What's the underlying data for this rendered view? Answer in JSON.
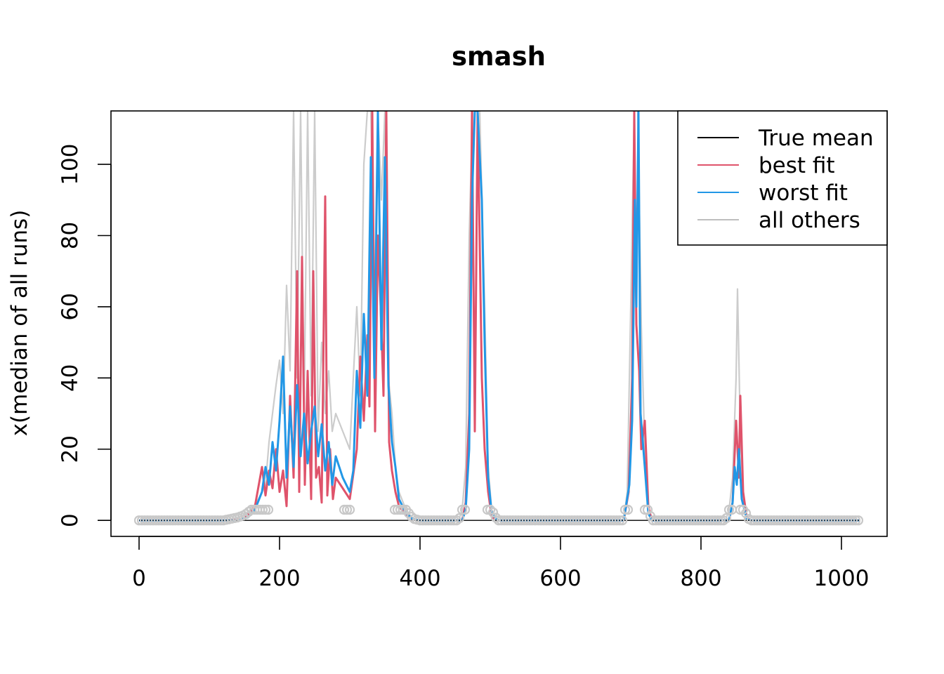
{
  "chart_data": {
    "type": "line",
    "title": "smash",
    "xlabel": "",
    "ylabel": "x(median of all runs)",
    "xlim": [
      -40,
      1065
    ],
    "ylim": [
      -4.5,
      115
    ],
    "x_ticks": [
      0,
      200,
      400,
      600,
      800,
      1000
    ],
    "x_tick_labels": [
      "0",
      "200",
      "400",
      "600",
      "800",
      "1000"
    ],
    "y_ticks": [
      0,
      20,
      40,
      60,
      80,
      100
    ],
    "y_tick_labels": [
      "0",
      "20",
      "40",
      "60",
      "80",
      "100"
    ],
    "legend": {
      "position": "top-right",
      "entries": [
        {
          "label": "True mean",
          "color": "#000000"
        },
        {
          "label": "best fit",
          "color": "#DF536B"
        },
        {
          "label": "worst fit",
          "color": "#2297E6"
        },
        {
          "label": "all others",
          "color": "#BEBEBE"
        }
      ]
    },
    "series": [
      {
        "name": "all others",
        "color": "#CCCCCC",
        "points": [
          [
            0,
            0
          ],
          [
            120,
            0
          ],
          [
            140,
            0.8
          ],
          [
            150,
            1.5
          ],
          [
            160,
            3
          ],
          [
            170,
            6
          ],
          [
            180,
            10
          ],
          [
            185,
            22
          ],
          [
            190,
            30
          ],
          [
            195,
            38
          ],
          [
            200,
            45
          ],
          [
            205,
            30
          ],
          [
            210,
            66
          ],
          [
            215,
            42
          ],
          [
            220,
            115
          ],
          [
            225,
            40
          ],
          [
            230,
            115
          ],
          [
            235,
            30
          ],
          [
            240,
            115
          ],
          [
            245,
            35
          ],
          [
            250,
            115
          ],
          [
            255,
            25
          ],
          [
            260,
            50
          ],
          [
            265,
            30
          ],
          [
            270,
            42
          ],
          [
            275,
            25
          ],
          [
            280,
            30
          ],
          [
            290,
            25
          ],
          [
            300,
            20
          ],
          [
            305,
            40
          ],
          [
            310,
            60
          ],
          [
            315,
            35
          ],
          [
            320,
            100
          ],
          [
            325,
            115
          ],
          [
            330,
            115
          ],
          [
            335,
            60
          ],
          [
            340,
            115
          ],
          [
            345,
            90
          ],
          [
            350,
            115
          ],
          [
            355,
            40
          ],
          [
            360,
            30
          ],
          [
            365,
            15
          ],
          [
            370,
            8
          ],
          [
            380,
            3
          ],
          [
            390,
            0.5
          ],
          [
            400,
            0
          ],
          [
            455,
            0
          ],
          [
            460,
            3
          ],
          [
            465,
            15
          ],
          [
            470,
            80
          ],
          [
            475,
            115
          ],
          [
            485,
            115
          ],
          [
            492,
            60
          ],
          [
            497,
            15
          ],
          [
            502,
            3
          ],
          [
            510,
            0
          ],
          [
            690,
            0
          ],
          [
            695,
            8
          ],
          [
            700,
            60
          ],
          [
            705,
            115
          ],
          [
            710,
            115
          ],
          [
            715,
            55
          ],
          [
            720,
            20
          ],
          [
            725,
            3
          ],
          [
            730,
            0
          ],
          [
            835,
            0
          ],
          [
            840,
            3
          ],
          [
            845,
            12
          ],
          [
            850,
            40
          ],
          [
            852,
            65
          ],
          [
            856,
            25
          ],
          [
            860,
            6
          ],
          [
            865,
            1
          ],
          [
            870,
            0
          ],
          [
            1025,
            0
          ]
        ]
      },
      {
        "name": "best fit",
        "color": "#DF536B",
        "points": [
          [
            0,
            0
          ],
          [
            130,
            0
          ],
          [
            150,
            0.5
          ],
          [
            165,
            4
          ],
          [
            175,
            15
          ],
          [
            180,
            7
          ],
          [
            185,
            14
          ],
          [
            190,
            9
          ],
          [
            195,
            20
          ],
          [
            200,
            8
          ],
          [
            205,
            14
          ],
          [
            210,
            4
          ],
          [
            215,
            35
          ],
          [
            220,
            12
          ],
          [
            225,
            70
          ],
          [
            228,
            8
          ],
          [
            232,
            74
          ],
          [
            236,
            10
          ],
          [
            240,
            42
          ],
          [
            245,
            6
          ],
          [
            248,
            70
          ],
          [
            252,
            12
          ],
          [
            256,
            15
          ],
          [
            260,
            5
          ],
          [
            265,
            91
          ],
          [
            268,
            7
          ],
          [
            272,
            20
          ],
          [
            276,
            6
          ],
          [
            280,
            12
          ],
          [
            290,
            9
          ],
          [
            300,
            6
          ],
          [
            310,
            20
          ],
          [
            315,
            46
          ],
          [
            320,
            28
          ],
          [
            325,
            52
          ],
          [
            328,
            32
          ],
          [
            332,
            115
          ],
          [
            336,
            25
          ],
          [
            340,
            80
          ],
          [
            344,
            60
          ],
          [
            348,
            35
          ],
          [
            352,
            115
          ],
          [
            356,
            22
          ],
          [
            360,
            14
          ],
          [
            365,
            8
          ],
          [
            370,
            4
          ],
          [
            380,
            1.5
          ],
          [
            390,
            0.3
          ],
          [
            400,
            0
          ],
          [
            460,
            0
          ],
          [
            465,
            5
          ],
          [
            470,
            30
          ],
          [
            474,
            115
          ],
          [
            478,
            25
          ],
          [
            482,
            115
          ],
          [
            488,
            40
          ],
          [
            492,
            20
          ],
          [
            497,
            8
          ],
          [
            502,
            1
          ],
          [
            510,
            0
          ],
          [
            690,
            0
          ],
          [
            697,
            8
          ],
          [
            702,
            40
          ],
          [
            705,
            115
          ],
          [
            708,
            55
          ],
          [
            712,
            42
          ],
          [
            715,
            20
          ],
          [
            720,
            28
          ],
          [
            725,
            4
          ],
          [
            730,
            0
          ],
          [
            840,
            0
          ],
          [
            845,
            5
          ],
          [
            850,
            28
          ],
          [
            854,
            12
          ],
          [
            856,
            35
          ],
          [
            860,
            8
          ],
          [
            865,
            1
          ],
          [
            870,
            0
          ],
          [
            1025,
            0
          ]
        ]
      },
      {
        "name": "worst fit",
        "color": "#2297E6",
        "points": [
          [
            0,
            0
          ],
          [
            140,
            0
          ],
          [
            155,
            0.8
          ],
          [
            165,
            3
          ],
          [
            175,
            8
          ],
          [
            180,
            15
          ],
          [
            185,
            10
          ],
          [
            190,
            22
          ],
          [
            195,
            14
          ],
          [
            200,
            28
          ],
          [
            205,
            46
          ],
          [
            210,
            12
          ],
          [
            215,
            32
          ],
          [
            220,
            15
          ],
          [
            225,
            38
          ],
          [
            230,
            18
          ],
          [
            235,
            30
          ],
          [
            240,
            16
          ],
          [
            245,
            25
          ],
          [
            250,
            32
          ],
          [
            255,
            18
          ],
          [
            260,
            27
          ],
          [
            265,
            14
          ],
          [
            270,
            22
          ],
          [
            275,
            10
          ],
          [
            280,
            18
          ],
          [
            290,
            12
          ],
          [
            300,
            8
          ],
          [
            305,
            14
          ],
          [
            310,
            42
          ],
          [
            315,
            26
          ],
          [
            320,
            58
          ],
          [
            325,
            35
          ],
          [
            330,
            102
          ],
          [
            335,
            40
          ],
          [
            340,
            115
          ],
          [
            345,
            48
          ],
          [
            350,
            102
          ],
          [
            355,
            38
          ],
          [
            360,
            22
          ],
          [
            365,
            15
          ],
          [
            370,
            6
          ],
          [
            380,
            2
          ],
          [
            390,
            0.3
          ],
          [
            400,
            0
          ],
          [
            460,
            0
          ],
          [
            465,
            3
          ],
          [
            470,
            20
          ],
          [
            474,
            90
          ],
          [
            478,
            115
          ],
          [
            482,
            115
          ],
          [
            488,
            90
          ],
          [
            492,
            50
          ],
          [
            497,
            12
          ],
          [
            502,
            2
          ],
          [
            510,
            0
          ],
          [
            690,
            0
          ],
          [
            698,
            10
          ],
          [
            702,
            28
          ],
          [
            706,
            90
          ],
          [
            708,
            60
          ],
          [
            711,
            115
          ],
          [
            714,
            30
          ],
          [
            720,
            15
          ],
          [
            725,
            2
          ],
          [
            730,
            0
          ],
          [
            840,
            0
          ],
          [
            845,
            5
          ],
          [
            848,
            15
          ],
          [
            851,
            10
          ],
          [
            854,
            20
          ],
          [
            858,
            6
          ],
          [
            865,
            0.5
          ],
          [
            870,
            0
          ],
          [
            1025,
            0
          ]
        ]
      },
      {
        "name": "True mean",
        "color": "#000000",
        "points": [
          [
            0,
            0
          ],
          [
            1025,
            0
          ]
        ]
      }
    ]
  }
}
